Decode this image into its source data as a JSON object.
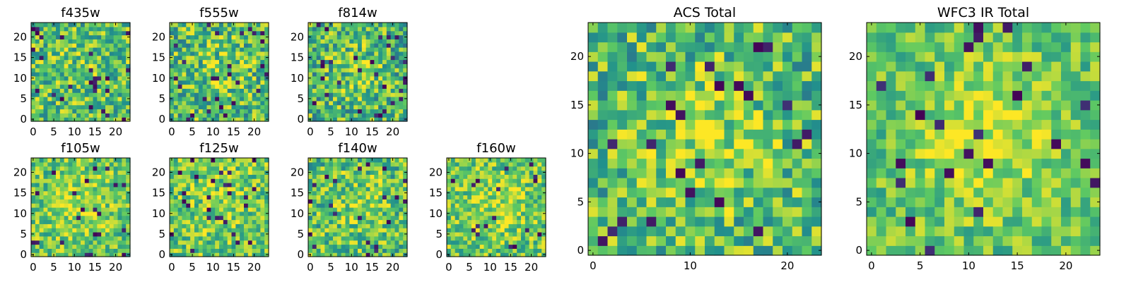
{
  "chart_data": [
    {
      "type": "heatmap",
      "title": "f435w",
      "xlim": [
        0,
        24
      ],
      "ylim": [
        0,
        24
      ],
      "grid_size": 24,
      "x_ticks": [
        0,
        5,
        10,
        15,
        20
      ],
      "y_ticks": [
        0,
        5,
        10,
        15,
        20
      ],
      "colormap": "viridis"
    },
    {
      "type": "heatmap",
      "title": "f555w",
      "xlim": [
        0,
        24
      ],
      "ylim": [
        0,
        24
      ],
      "grid_size": 24,
      "x_ticks": [
        0,
        5,
        10,
        15,
        20
      ],
      "y_ticks": [
        0,
        5,
        10,
        15,
        20
      ],
      "colormap": "viridis"
    },
    {
      "type": "heatmap",
      "title": "f814w",
      "xlim": [
        0,
        24
      ],
      "ylim": [
        0,
        24
      ],
      "grid_size": 24,
      "x_ticks": [
        0,
        5,
        10,
        15,
        20
      ],
      "y_ticks": [
        0,
        5,
        10,
        15,
        20
      ],
      "colormap": "viridis"
    },
    {
      "type": "heatmap",
      "title": "f105w",
      "xlim": [
        0,
        24
      ],
      "ylim": [
        0,
        24
      ],
      "grid_size": 24,
      "x_ticks": [
        0,
        5,
        10,
        15,
        20
      ],
      "y_ticks": [
        0,
        5,
        10,
        15,
        20
      ],
      "colormap": "viridis"
    },
    {
      "type": "heatmap",
      "title": "f125w",
      "xlim": [
        0,
        24
      ],
      "ylim": [
        0,
        24
      ],
      "grid_size": 24,
      "x_ticks": [
        0,
        5,
        10,
        15,
        20
      ],
      "y_ticks": [
        0,
        5,
        10,
        15,
        20
      ],
      "colormap": "viridis"
    },
    {
      "type": "heatmap",
      "title": "f140w",
      "xlim": [
        0,
        24
      ],
      "ylim": [
        0,
        24
      ],
      "grid_size": 24,
      "x_ticks": [
        0,
        5,
        10,
        15,
        20
      ],
      "y_ticks": [
        0,
        5,
        10,
        15,
        20
      ],
      "colormap": "viridis"
    },
    {
      "type": "heatmap",
      "title": "f160w",
      "xlim": [
        0,
        24
      ],
      "ylim": [
        0,
        24
      ],
      "grid_size": 24,
      "x_ticks": [
        0,
        5,
        10,
        15,
        20
      ],
      "y_ticks": [
        0,
        5,
        10,
        15,
        20
      ],
      "colormap": "viridis"
    },
    {
      "type": "heatmap",
      "title": "ACS Total",
      "xlim": [
        0,
        24
      ],
      "ylim": [
        0,
        24
      ],
      "grid_size": 24,
      "x_ticks": [
        0,
        10,
        20
      ],
      "y_ticks": [
        0,
        5,
        10,
        15,
        20
      ],
      "colormap": "viridis"
    },
    {
      "type": "heatmap",
      "title": "WFC3 IR Total",
      "xlim": [
        0,
        24
      ],
      "ylim": [
        0,
        24
      ],
      "grid_size": 24,
      "x_ticks": [
        0,
        5,
        10,
        15,
        20
      ],
      "y_ticks": [
        0,
        5,
        10,
        15,
        20
      ],
      "colormap": "viridis"
    }
  ]
}
